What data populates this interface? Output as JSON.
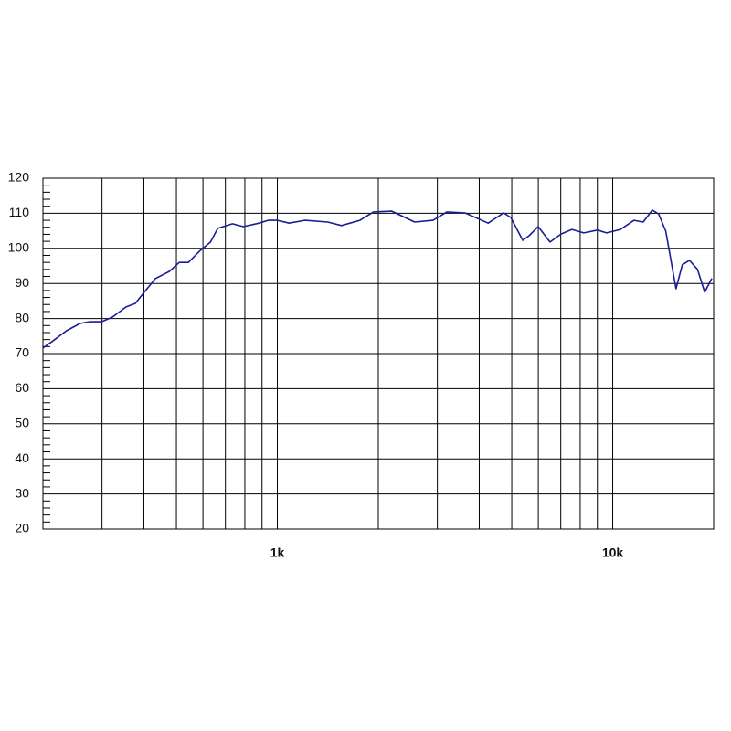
{
  "chart_data": {
    "type": "line",
    "xscale": "log",
    "color": "#1c1c96",
    "grid": true,
    "xlim": [
      200,
      20000
    ],
    "ylim": [
      20,
      120
    ],
    "xticks": [
      {
        "value": 1000,
        "label": "1k"
      },
      {
        "value": 10000,
        "label": "10k"
      }
    ],
    "xminor": [
      300,
      400,
      500,
      600,
      700,
      800,
      900,
      2000,
      3000,
      4000,
      5000,
      6000,
      7000,
      8000,
      9000
    ],
    "yticks": [
      20,
      30,
      40,
      50,
      60,
      70,
      80,
      90,
      100,
      110,
      120
    ],
    "yminor_per_major": 5,
    "x": [
      200,
      214,
      235,
      258,
      275,
      299,
      322,
      354,
      377,
      401,
      433,
      476,
      510,
      543,
      586,
      632,
      664,
      735,
      792,
      882,
      939,
      1000,
      1085,
      1208,
      1413,
      1553,
      1763,
      1935,
      2194,
      2568,
      2914,
      3202,
      3630,
      4252,
      4728,
      4968,
      5394,
      5633,
      5997,
      6503,
      7015,
      7560,
      8202,
      9011,
      9596,
      10545,
      11580,
      12330,
      13126,
      13710,
      14400,
      15440,
      16130,
      16940,
      17900,
      18810,
      19750
    ],
    "values": [
      71.6,
      73.6,
      76.5,
      78.6,
      79.1,
      79.1,
      80.4,
      83.3,
      84.3,
      87.5,
      91.4,
      93.4,
      96.0,
      96.0,
      99.2,
      101.8,
      105.7,
      107.0,
      106.2,
      107.2,
      108.0,
      108.0,
      107.2,
      108.0,
      107.5,
      106.5,
      108.0,
      110.4,
      110.6,
      107.5,
      108.0,
      110.4,
      110.1,
      107.2,
      110.1,
      108.8,
      102.3,
      103.6,
      106.2,
      101.8,
      104.1,
      105.4,
      104.4,
      105.2,
      104.4,
      105.4,
      108.0,
      107.5,
      110.9,
      109.8,
      104.9,
      88.5,
      95.3,
      96.6,
      94.0,
      87.5,
      91.4
    ]
  }
}
